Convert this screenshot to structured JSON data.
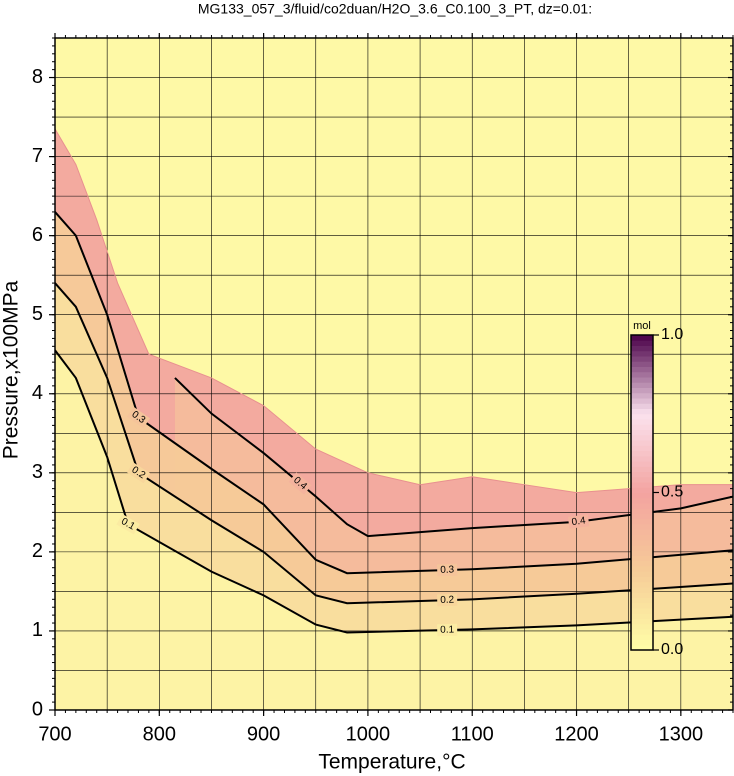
{
  "chart_data": {
    "type": "contour",
    "title": "MG133_057_3/fluid/co2duan/H2O_3.6_C0.100_3_PT, dz=0.01:",
    "xlabel": "Temperature,°C",
    "ylabel": "Pressure,x100MPa",
    "xlim": [
      700,
      1350
    ],
    "ylim": [
      0,
      8.5
    ],
    "xticks": [
      700,
      800,
      900,
      1000,
      1100,
      1200,
      1300
    ],
    "yticks": [
      0,
      1,
      2,
      3,
      4,
      5,
      6,
      7,
      8
    ],
    "grid_step": {
      "x": 50,
      "y": 0.5
    },
    "colormap": [
      "#ffffa8",
      "#f6cc98",
      "#f3a3a0",
      "#fbe2ee",
      "#4a0048"
    ],
    "boundary": {
      "x": [
        700,
        720,
        740,
        760,
        790,
        820,
        850,
        900,
        950,
        1000,
        1050,
        1100,
        1150,
        1200,
        1300,
        1350
      ],
      "y": [
        7.35,
        6.9,
        6.2,
        5.4,
        4.5,
        4.35,
        4.2,
        3.85,
        3.3,
        3.0,
        2.85,
        2.95,
        2.85,
        2.75,
        2.85,
        2.85
      ]
    },
    "series": [
      {
        "name": "0.4",
        "level": 0.4,
        "x": [
          815,
          850,
          900,
          950,
          980,
          1000,
          1100,
          1200,
          1300,
          1350
        ],
        "y": [
          4.2,
          3.75,
          3.25,
          2.7,
          2.35,
          2.2,
          2.3,
          2.38,
          2.55,
          2.7
        ]
      },
      {
        "name": "0.3",
        "level": 0.3,
        "x": [
          700,
          720,
          750,
          780,
          850,
          900,
          950,
          980,
          1100,
          1200,
          1350
        ],
        "y": [
          6.3,
          6.0,
          5.0,
          3.7,
          3.05,
          2.6,
          1.9,
          1.73,
          1.78,
          1.85,
          2.02
        ]
      },
      {
        "name": "0.2",
        "level": 0.2,
        "x": [
          700,
          720,
          750,
          780,
          850,
          900,
          950,
          980,
          1100,
          1200,
          1350
        ],
        "y": [
          5.4,
          5.1,
          4.2,
          3.0,
          2.4,
          2.0,
          1.45,
          1.35,
          1.4,
          1.47,
          1.6
        ]
      },
      {
        "name": "0.1",
        "level": 0.1,
        "x": [
          700,
          720,
          750,
          770,
          850,
          900,
          950,
          980,
          1100,
          1200,
          1350
        ],
        "y": [
          4.55,
          4.2,
          3.2,
          2.35,
          1.75,
          1.45,
          1.08,
          0.98,
          1.02,
          1.07,
          1.18
        ]
      }
    ],
    "colorbar": {
      "label": "mol",
      "lim": [
        0,
        1
      ],
      "ticks": [
        {
          "value": 0,
          "label": "0.0"
        },
        0.5,
        {
          "value": 1,
          "label": "1.0"
        }
      ]
    }
  }
}
